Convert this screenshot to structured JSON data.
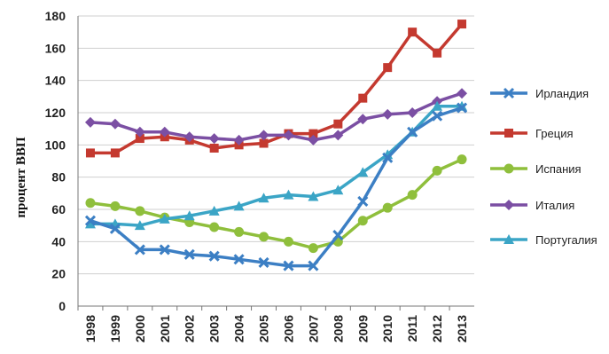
{
  "chart_data": {
    "type": "line",
    "title": "",
    "xlabel": "",
    "ylabel": "процент ВВП",
    "ylim": [
      0,
      180
    ],
    "yticks": [
      0,
      20,
      40,
      60,
      80,
      100,
      120,
      140,
      160,
      180
    ],
    "grid": "horizontal",
    "legend_position": "right",
    "x": [
      "1998",
      "1999",
      "2000",
      "2001",
      "2002",
      "2003",
      "2004",
      "2005",
      "2006",
      "2007",
      "2008",
      "2009",
      "2010",
      "2011",
      "2012",
      "2013"
    ],
    "series": [
      {
        "name": "Ирландия",
        "color": "#3c7fc4",
        "marker": "x",
        "values": [
          53,
          48,
          35,
          35,
          32,
          31,
          29,
          27,
          25,
          25,
          44,
          65,
          92,
          108,
          118,
          123
        ]
      },
      {
        "name": "Греция",
        "color": "#c4392f",
        "marker": "square",
        "values": [
          95,
          95,
          104,
          105,
          103,
          98,
          100,
          101,
          107,
          107,
          113,
          129,
          148,
          170,
          157,
          175
        ]
      },
      {
        "name": "Испания",
        "color": "#8fbf3c",
        "marker": "circle",
        "values": [
          64,
          62,
          59,
          55,
          52,
          49,
          46,
          43,
          40,
          36,
          40,
          53,
          61,
          69,
          84,
          91
        ]
      },
      {
        "name": "Италия",
        "color": "#7b4fa3",
        "marker": "diamond",
        "values": [
          114,
          113,
          108,
          108,
          105,
          104,
          103,
          106,
          106,
          103,
          106,
          116,
          119,
          120,
          127,
          132
        ]
      },
      {
        "name": "Португалия",
        "color": "#3ba5c6",
        "marker": "triangle",
        "values": [
          51,
          51,
          50,
          54,
          56,
          59,
          62,
          67,
          69,
          68,
          72,
          83,
          94,
          108,
          124,
          124
        ]
      }
    ]
  }
}
